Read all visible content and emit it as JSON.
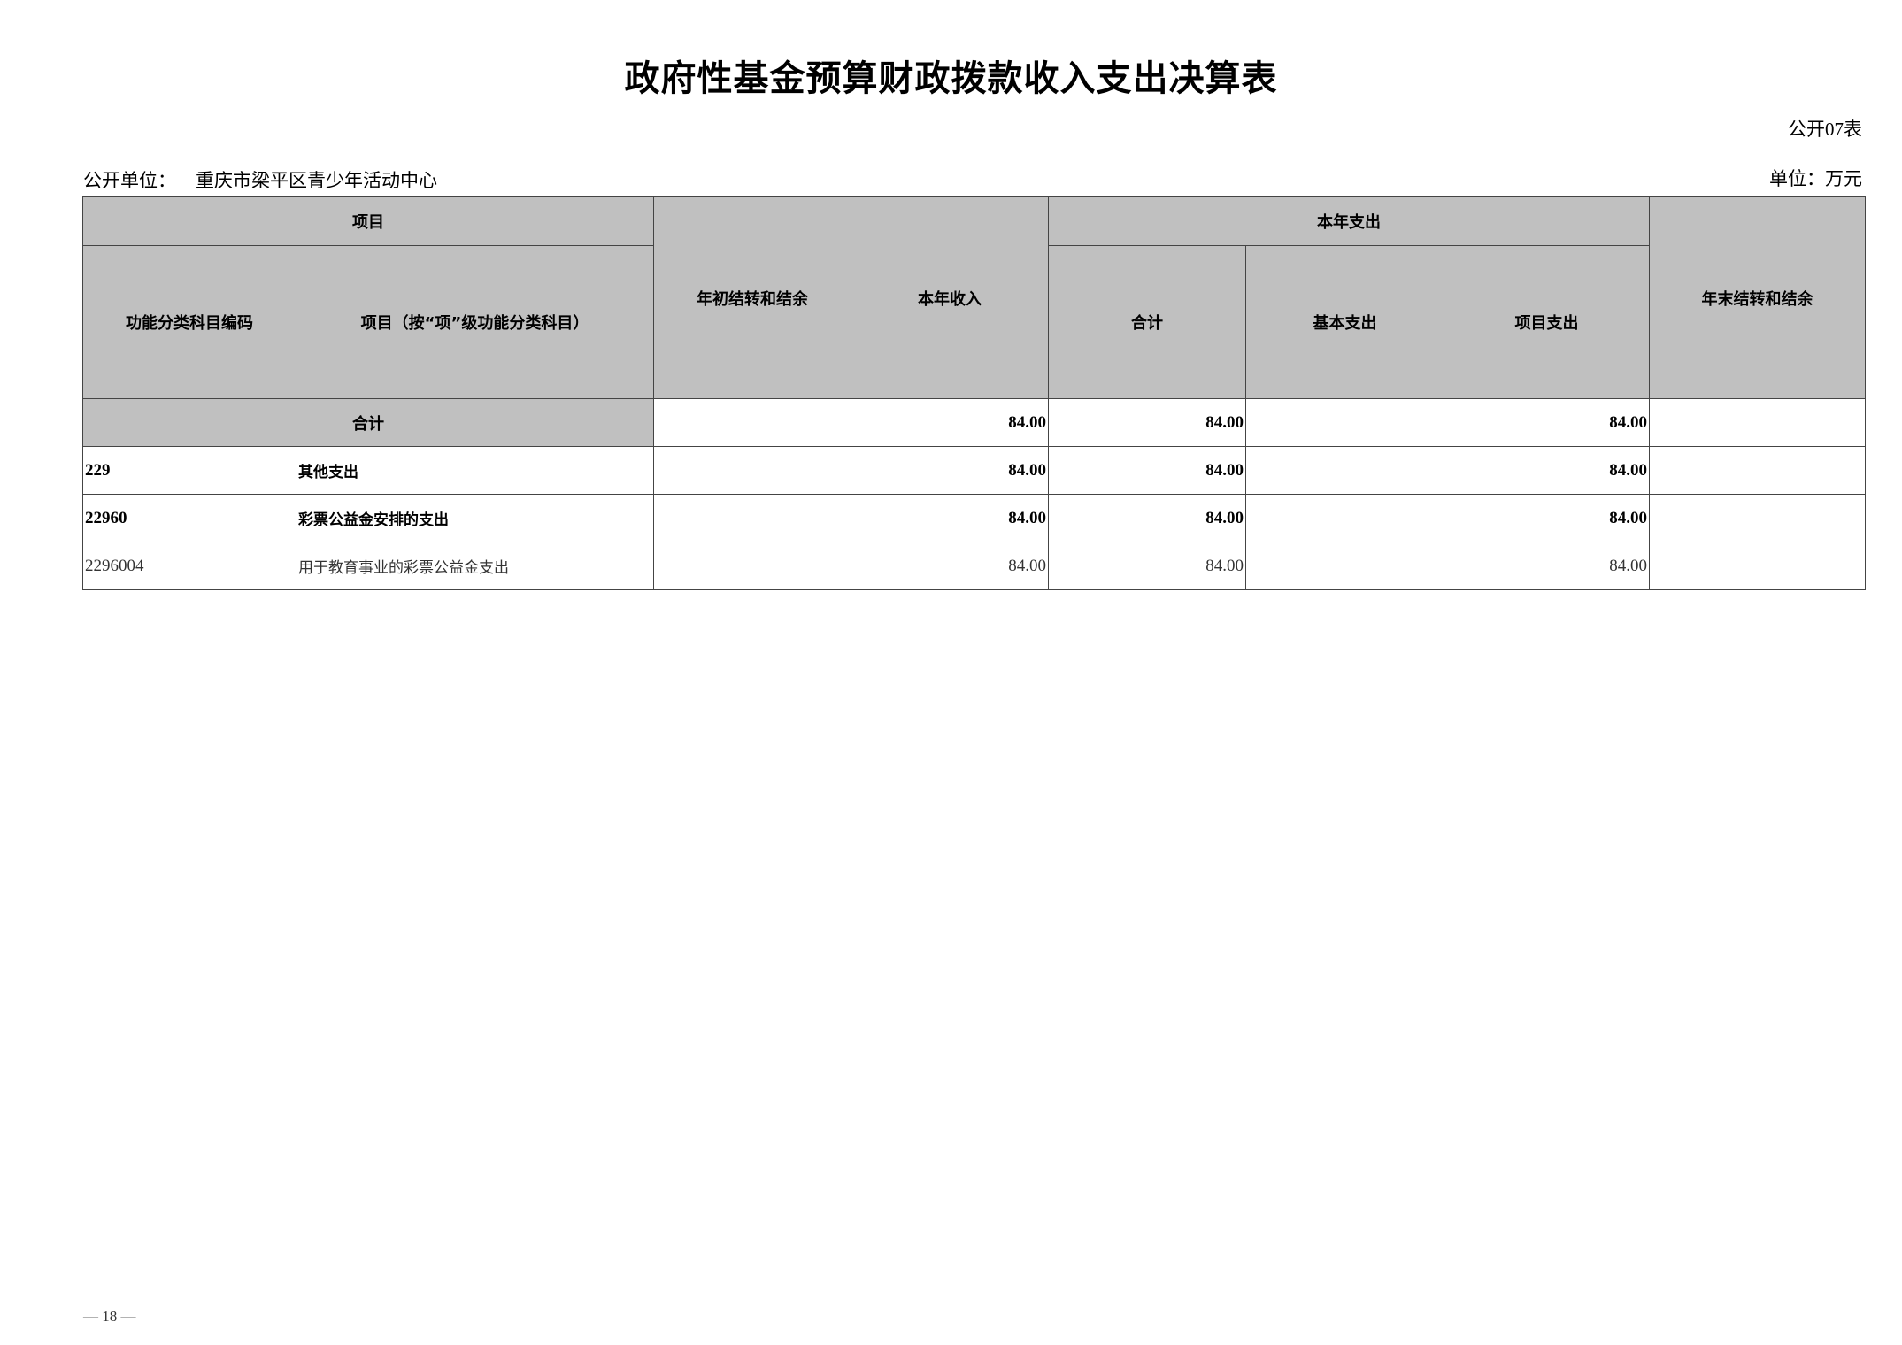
{
  "title": "政府性基金预算财政拨款收入支出决算表",
  "table_no": "公开07表",
  "unit_label": "公开单位：",
  "unit_name": "重庆市梁平区青少年活动中心",
  "currency_unit": "单位：万元",
  "headers": {
    "item": "项目",
    "code": "功能分类科目编码",
    "name": "项目（按“项”级功能分类科目）",
    "begin_balance": "年初结转和结余",
    "income": "本年收入",
    "expense": "本年支出",
    "expense_total": "合计",
    "expense_basic": "基本支出",
    "expense_project": "项目支出",
    "end_balance": "年末结转和结余"
  },
  "total_row": {
    "label": "合计",
    "begin_balance": "",
    "income": "84.00",
    "expense_total": "84.00",
    "expense_basic": "",
    "expense_project": "84.00",
    "end_balance": ""
  },
  "rows": [
    {
      "code": "229",
      "name": "其他支出",
      "begin_balance": "",
      "income": "84.00",
      "expense_total": "84.00",
      "expense_basic": "",
      "expense_project": "84.00",
      "end_balance": ""
    },
    {
      "code": "22960",
      "name": "彩票公益金安排的支出",
      "begin_balance": "",
      "income": "84.00",
      "expense_total": "84.00",
      "expense_basic": "",
      "expense_project": "84.00",
      "end_balance": ""
    },
    {
      "code": "2296004",
      "name": "用于教育事业的彩票公益金支出",
      "begin_balance": "",
      "income": "84.00",
      "expense_total": "84.00",
      "expense_basic": "",
      "expense_project": "84.00",
      "end_balance": ""
    }
  ],
  "page_number": "— 18 —"
}
